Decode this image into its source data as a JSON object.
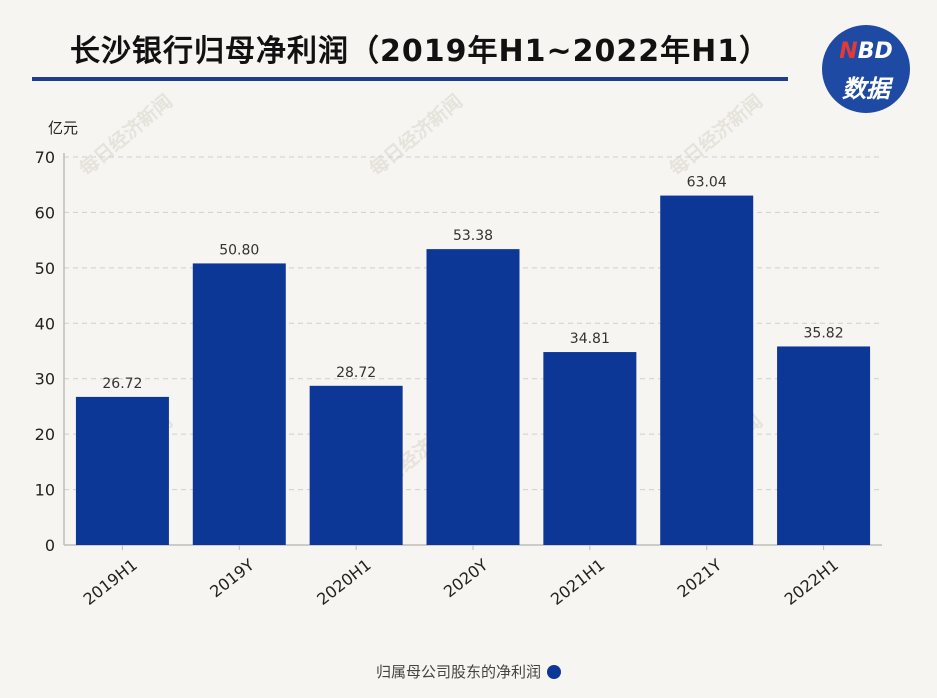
{
  "title": "长沙银行归母净利润（2019年H1~2022年H1）",
  "logo": {
    "line1_n": "N",
    "line1_rest": "BD",
    "line2": "数据"
  },
  "watermark": "每日经济新闻",
  "colors": {
    "bar": "#0d3796",
    "accent": "#1f3c8f",
    "logo_bg": "#1f4aa3",
    "logo_n": "#e53935"
  },
  "chart_data": {
    "type": "bar",
    "title": "长沙银行归母净利润（2019年H1~2022年H1）",
    "ylabel": "亿元",
    "xlabel": "",
    "ylim": [
      0,
      70
    ],
    "yticks": [
      0,
      10,
      20,
      30,
      40,
      50,
      60,
      70
    ],
    "categories": [
      "2019H1",
      "2019Y",
      "2020H1",
      "2020Y",
      "2021H1",
      "2021Y",
      "2022H1"
    ],
    "series": [
      {
        "name": "归属母公司股东的净利润",
        "values": [
          26.72,
          50.8,
          28.72,
          53.38,
          34.81,
          63.04,
          35.82
        ],
        "labels": [
          "26.72",
          "50.80",
          "28.72",
          "53.38",
          "34.81",
          "63.04",
          "35.82"
        ]
      }
    ],
    "legend_position": "bottom",
    "grid": true
  }
}
